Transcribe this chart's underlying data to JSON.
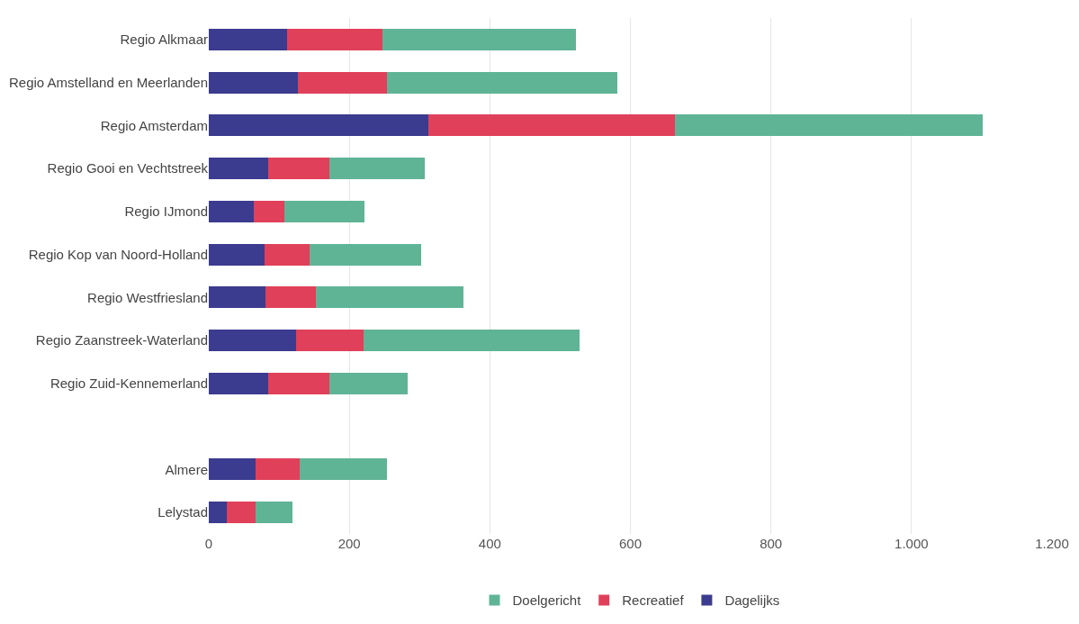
{
  "chart_data": {
    "type": "bar",
    "orientation": "horizontal",
    "stacked": true,
    "categories": [
      "Regio Alkmaar",
      "Regio Amstelland en Meerlanden",
      "Regio Amsterdam",
      "Regio Gooi en Vechtstreek",
      "Regio IJmond",
      "Regio Kop van Noord-Holland",
      "Regio Westfriesland",
      "Regio Zaanstreek-Waterland",
      "Regio Zuid-Kennemerland",
      null,
      "Almere",
      "Lelystad"
    ],
    "series": [
      {
        "name": "Dagelijks",
        "color": "#3b3b8f",
        "values": [
          112,
          127,
          312,
          85,
          64,
          79,
          81,
          124,
          85,
          null,
          67,
          26
        ]
      },
      {
        "name": "Recreatief",
        "color": "#e0405a",
        "values": [
          135,
          127,
          351,
          87,
          43,
          64,
          72,
          96,
          86,
          null,
          62,
          41
        ]
      },
      {
        "name": "Doelgericht",
        "color": "#5fb496",
        "values": [
          275,
          327,
          439,
          135,
          115,
          159,
          209,
          307,
          112,
          null,
          125,
          52
        ]
      }
    ],
    "xlim": [
      0,
      1200
    ],
    "xticks": [
      0,
      200,
      400,
      600,
      800,
      {
        "value": 1000,
        "label": "1.000"
      },
      {
        "value": 1200,
        "label": "1.200"
      }
    ],
    "grid": "x",
    "legend": "bottom"
  }
}
